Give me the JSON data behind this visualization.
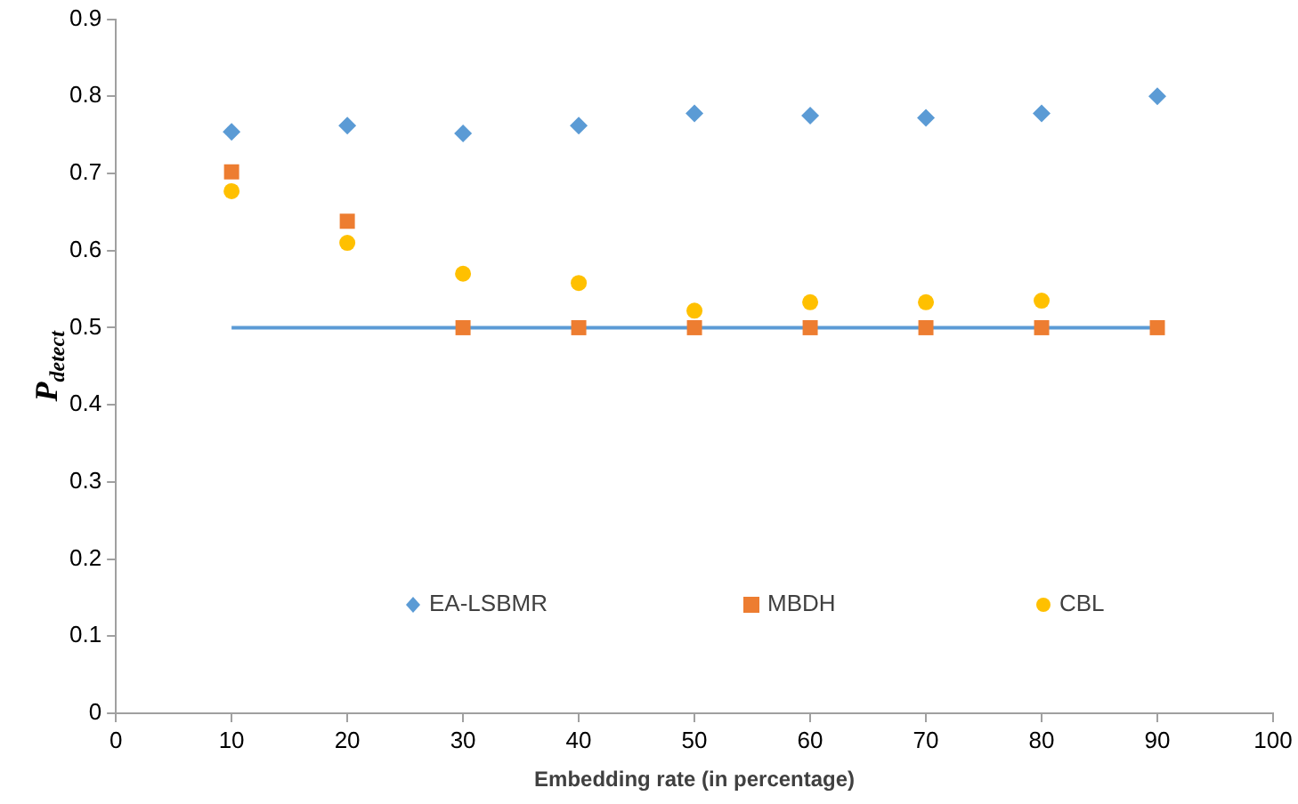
{
  "chart_data": {
    "type": "scatter",
    "xlabel": "Embedding rate (in percentage)",
    "ylabel": "P$_{detect}$",
    "x": [
      10,
      20,
      30,
      40,
      50,
      60,
      70,
      80,
      90
    ],
    "series": [
      {
        "name": "EA-LSBMR",
        "color": "#5b9bd5",
        "marker": "diamond",
        "values": [
          0.754,
          0.762,
          0.752,
          0.762,
          0.778,
          0.775,
          0.772,
          0.778,
          0.8
        ]
      },
      {
        "name": "MBDH",
        "color": "#ed7d31",
        "marker": "square",
        "values": [
          0.702,
          0.638,
          0.5,
          0.5,
          0.5,
          0.5,
          0.5,
          0.5,
          0.5
        ]
      },
      {
        "name": "CBL",
        "color": "#ffc000",
        "marker": "circle",
        "values": [
          0.677,
          0.61,
          0.57,
          0.558,
          0.522,
          0.533,
          0.533,
          0.535,
          null
        ]
      },
      {
        "type": "line",
        "color": "#5b9bd5",
        "marker": "none",
        "x": [
          10,
          90
        ],
        "values": [
          0.5,
          0.5
        ]
      }
    ],
    "xlim": [
      0,
      100
    ],
    "xticks": [
      0,
      10,
      20,
      30,
      40,
      50,
      60,
      70,
      80,
      90,
      100
    ],
    "ylim": [
      0,
      0.9
    ],
    "yticks": [
      0,
      0.1,
      0.2,
      0.3,
      0.4,
      0.5,
      0.6,
      0.7,
      0.8,
      0.9
    ],
    "grid": false,
    "legend": "bottom"
  }
}
